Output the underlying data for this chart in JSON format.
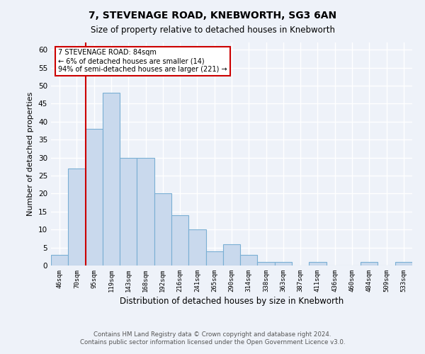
{
  "title1": "7, STEVENAGE ROAD, KNEBWORTH, SG3 6AN",
  "title2": "Size of property relative to detached houses in Knebworth",
  "xlabel": "Distribution of detached houses by size in Knebworth",
  "ylabel": "Number of detached properties",
  "bin_labels": [
    "46sqm",
    "70sqm",
    "95sqm",
    "119sqm",
    "143sqm",
    "168sqm",
    "192sqm",
    "216sqm",
    "241sqm",
    "265sqm",
    "290sqm",
    "314sqm",
    "338sqm",
    "363sqm",
    "387sqm",
    "411sqm",
    "436sqm",
    "460sqm",
    "484sqm",
    "509sqm",
    "533sqm"
  ],
  "bar_values": [
    3,
    27,
    38,
    48,
    30,
    30,
    20,
    14,
    10,
    4,
    6,
    3,
    1,
    1,
    0,
    1,
    0,
    0,
    1,
    0,
    1
  ],
  "bar_color": "#c9d9ed",
  "bar_edge_color": "#7aafd4",
  "vline_x": 1.5,
  "vline_color": "#cc0000",
  "ylim": [
    0,
    62
  ],
  "yticks": [
    0,
    5,
    10,
    15,
    20,
    25,
    30,
    35,
    40,
    45,
    50,
    55,
    60
  ],
  "annotation_text": "7 STEVENAGE ROAD: 84sqm\n← 6% of detached houses are smaller (14)\n94% of semi-detached houses are larger (221) →",
  "annotation_box_color": "#ffffff",
  "annotation_box_edge": "#cc0000",
  "footer1": "Contains HM Land Registry data © Crown copyright and database right 2024.",
  "footer2": "Contains public sector information licensed under the Open Government Licence v3.0.",
  "bg_color": "#eef2f9"
}
